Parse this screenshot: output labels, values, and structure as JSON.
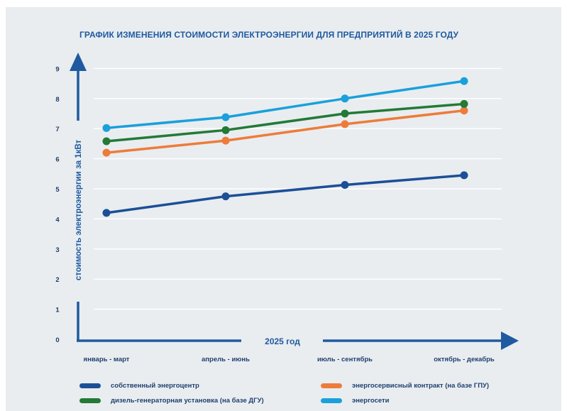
{
  "colors": {
    "background": "#e9edf0",
    "axis": "#1f5aa0",
    "grid": "#ffffff",
    "text": "#1f3f6e"
  },
  "chart_data": {
    "type": "line",
    "title": "ГРАФИК ИЗМЕНЕНИЯ СТОИМОСТИ ЭЛЕКТРОЭНЕРГИИ ДЛЯ ПРЕДПРИЯТИЙ В 2025 ГОДУ",
    "xlabel": "2025 год",
    "ylabel": "стоимость электроэнергии за 1кВт",
    "categories": [
      "январь - март",
      "апрель - июнь",
      "июль - сентябрь",
      "октябрь - декабрь"
    ],
    "yticks": [
      "0",
      "1",
      "2",
      "3",
      "4",
      "5",
      "6",
      "7",
      "8",
      "9"
    ],
    "ylim": [
      0,
      9
    ],
    "grid": true,
    "legend_position": "bottom",
    "series": [
      {
        "name": "собственный энергоцентр",
        "color": "#1c4f97",
        "values": [
          4.2,
          4.75,
          5.13,
          5.45
        ]
      },
      {
        "name": "энергосервисный контракт (на базе ГПУ)",
        "color": "#ed7c3a",
        "values": [
          6.2,
          6.6,
          7.15,
          7.6
        ]
      },
      {
        "name": "дизель-генераторная установка (на базе ДГУ)",
        "color": "#237a36",
        "values": [
          6.58,
          6.95,
          7.5,
          7.82
        ]
      },
      {
        "name": "энергосети",
        "color": "#1aa0db",
        "values": [
          7.02,
          7.38,
          8.0,
          8.58
        ]
      }
    ]
  }
}
